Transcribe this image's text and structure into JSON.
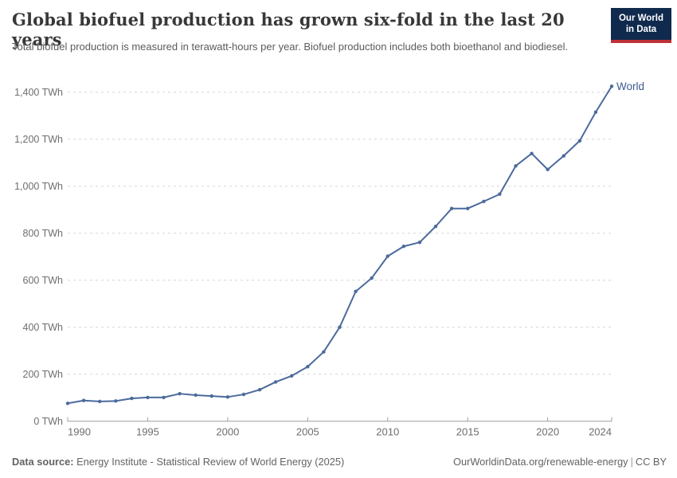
{
  "header": {
    "title": "Global biofuel production has grown six-fold in the last 20 years",
    "subtitle": "Total biofuel production is measured in terawatt-hours per year. Biofuel production includes both bioethanol and biodiesel.",
    "logo": {
      "line1": "Our World",
      "line2": "in Data",
      "bg_color": "#102a4e",
      "stripe_color": "#bf3036"
    }
  },
  "chart_data": {
    "type": "line",
    "title": "Global biofuel production has grown six-fold in the last 20 years",
    "unit": "TWh",
    "xlabel": "",
    "ylabel": "TWh",
    "xlim": [
      1990,
      2024
    ],
    "ylim": [
      0,
      1400
    ],
    "grid": "horizontal-dashed",
    "legend_position": "end-of-line-label",
    "x": [
      1990,
      1991,
      1992,
      1993,
      1994,
      1995,
      1996,
      1997,
      1998,
      1999,
      2000,
      2001,
      2002,
      2003,
      2004,
      2005,
      2006,
      2007,
      2008,
      2009,
      2010,
      2011,
      2012,
      2013,
      2014,
      2015,
      2016,
      2017,
      2018,
      2019,
      2020,
      2021,
      2022,
      2023,
      2024
    ],
    "series": [
      {
        "name": "World",
        "color": "#4c6a9c",
        "values": [
          76,
          88,
          84,
          86,
          97,
          101,
          101,
          117,
          111,
          107,
          103,
          114,
          134,
          167,
          193,
          232,
          295,
          400,
          552,
          609,
          702,
          744,
          761,
          829,
          905,
          905,
          935,
          966,
          1086,
          1139,
          1071,
          1129,
          1193,
          1315,
          1425
        ]
      }
    ],
    "x_ticks": [
      1990,
      1995,
      2000,
      2005,
      2010,
      2015,
      2020,
      2024
    ],
    "y_ticks": [
      0,
      200,
      400,
      600,
      800,
      1000,
      1200,
      1400
    ],
    "y_tick_labels": [
      "0 TWh",
      "200 TWh",
      "400 TWh",
      "600 TWh",
      "800 TWh",
      "1,000 TWh",
      "1,200 TWh",
      "1,400 TWh"
    ],
    "colors": {
      "grid": "#d6d6d6",
      "axis": "#9e9e9e",
      "tick_text": "#6e6e6e",
      "line": "#4c6a9c",
      "end_label": "#3d5a8f"
    }
  },
  "footer": {
    "source_label": "Data source:",
    "source_text": " Energy Institute - Statistical Review of World Energy (2025)",
    "link": "OurWorldinData.org/renewable-energy",
    "separator": "|",
    "license": "CC BY"
  }
}
